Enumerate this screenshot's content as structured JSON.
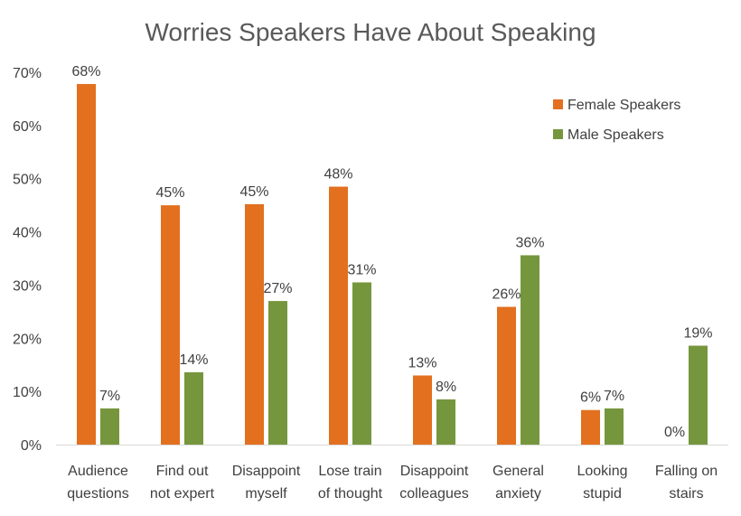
{
  "chart_data": {
    "type": "bar",
    "title": "Worries Speakers Have About Speaking",
    "xlabel": "",
    "ylabel": "",
    "ylim": [
      0,
      70
    ],
    "yticks": [
      "0%",
      "10%",
      "20%",
      "30%",
      "40%",
      "50%",
      "60%",
      "70%"
    ],
    "grid": false,
    "legend_position": "top-right",
    "categories": [
      [
        "Audience",
        "questions"
      ],
      [
        "Find out",
        "not expert"
      ],
      [
        "Disappoint",
        "myself"
      ],
      [
        "Lose train",
        "of thought"
      ],
      [
        "Disappoint",
        "colleagues"
      ],
      [
        "General",
        "anxiety"
      ],
      [
        "Looking",
        "stupid"
      ],
      [
        "Falling on",
        "stairs"
      ]
    ],
    "series": [
      {
        "name": "Female Speakers",
        "color": "#E2701F",
        "values": [
          67.8,
          45.0,
          45.2,
          48.5,
          13.0,
          25.9,
          6.5,
          0
        ],
        "labels": [
          "68%",
          "45%",
          "45%",
          "48%",
          "13%",
          "26%",
          "6%",
          "0%"
        ]
      },
      {
        "name": "Male Speakers",
        "color": "#76963D",
        "values": [
          6.8,
          13.6,
          27.0,
          30.5,
          8.5,
          35.6,
          6.8,
          18.6
        ],
        "labels": [
          "7%",
          "14%",
          "27%",
          "31%",
          "8%",
          "36%",
          "7%",
          "19%"
        ]
      }
    ]
  }
}
